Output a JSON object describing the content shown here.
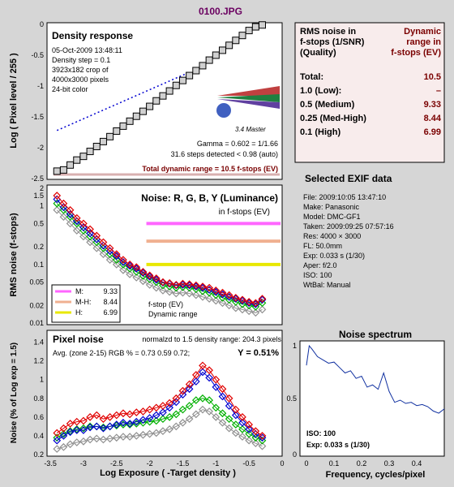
{
  "file_title": "0100.JPG",
  "colors": {
    "red": "#e00000",
    "green": "#00b000",
    "blue": "#0000d0",
    "gray": "#909090",
    "dark_red": "#800000",
    "title": "#6a0060"
  },
  "density": {
    "title": "Density response",
    "info": [
      "05-Oct-2009 13:48:11",
      "Density step = 0.1",
      "3923x182 crop of",
      "4000x3000 pixels",
      "24-bit color"
    ],
    "logo": "imatest",
    "logo_sub": "3.4  Master",
    "gamma": "Gamma = 0.602 = 1/1.66",
    "steps": "31.6 steps detected < 0.98 (auto)",
    "total_dr": "Total dynamic range = 10.5 f-stops (EV)",
    "ylabel": "Log ( Pixel level / 255 )",
    "yticks": [
      "0",
      "-0.5",
      "-1",
      "-1.5",
      "-2",
      "-2.5"
    ]
  },
  "noise_panel": {
    "title": "Noise: R, G, B, Y (Luminance)",
    "subtitle": "in f-stops (EV)",
    "ylabel": "RMS noise (f-stops)",
    "yticks": [
      "2",
      "1.5",
      "1",
      "0.5",
      "0.2",
      "0.1",
      "0.05",
      "0.02",
      "0.01"
    ],
    "legend": [
      {
        "k": "M:",
        "v": "9.33",
        "color": "#ff66ff"
      },
      {
        "k": "M-H:",
        "v": "8.44",
        "color": "#f0b090"
      },
      {
        "k": "H:",
        "v": "6.99",
        "color": "#e8e800"
      }
    ],
    "legend_note1": "f-stop (EV)",
    "legend_note2": "Dynamic range"
  },
  "pixel_panel": {
    "title": "Pixel noise",
    "norm": "normalzd to 1.5 density range: 204.3 pixels",
    "avg": "Avg. (zone 2-15) RGB % = 0.73  0.59  0.72;",
    "y_pct": "Y = 0.51%",
    "ylabel": "Noise (% of Log exp = 1.5)",
    "yticks": [
      "1.4",
      "1.2",
      "1",
      "0.8",
      "0.6",
      "0.4",
      "0.2"
    ],
    "xticks": [
      "-3.5",
      "-3",
      "-2.5",
      "-2",
      "-1.5",
      "-1",
      "-0.5",
      "0"
    ],
    "xlabel": "Log Exposure ( -Target density )"
  },
  "rms_table": {
    "h1": "RMS noise in",
    "h2": "f-stops (1/SNR)",
    "h3": "(Quality)",
    "d1": "Dynamic",
    "d2": "range in",
    "d3": "f-stops (EV)",
    "rows": [
      {
        "label": "Total:",
        "value": "10.5"
      },
      {
        "label": "1.0   (Low):",
        "value": "–"
      },
      {
        "label": "0.5   (Medium)",
        "value": "9.33"
      },
      {
        "label": "0.25 (Med-High)",
        "value": "8.44"
      },
      {
        "label": "0.1   (High)",
        "value": "6.99"
      }
    ]
  },
  "exif": {
    "title": "Selected EXIF data",
    "lines": [
      "File:  2009:10:05 13:47:10",
      "Make:  Panasonic",
      "Model: DMC-GF1",
      "Taken:  2009:09:25 07:57:16",
      "Res:   4000 × 3000",
      "FL:   50.0mm",
      "Exp:  0.033 s  (1/30)",
      "Aper:  f/2.0",
      "ISO:   100",
      "WtBal:  Manual"
    ]
  },
  "spectrum": {
    "title": "Noise spectrum",
    "xlabel": "Frequency, cycles/pixel",
    "yticks": [
      "1",
      "0.5",
      "0"
    ],
    "xticks": [
      "0",
      "0.1",
      "0.2",
      "0.3",
      "0.4"
    ],
    "iso": "ISO:    100",
    "exp": "Exp:  0.033 s    (1/30)"
  },
  "chart_data": [
    {
      "type": "line",
      "title": "Density response",
      "ylabel": "Log ( Pixel level / 255 )",
      "ylim": [
        -2.5,
        0
      ],
      "x": [
        -3.4,
        -3.3,
        -3.2,
        -3.1,
        -3.0,
        -2.9,
        -2.8,
        -2.7,
        -2.6,
        -2.5,
        -2.4,
        -2.3,
        -2.2,
        -2.1,
        -2.0,
        -1.9,
        -1.8,
        -1.7,
        -1.6,
        -1.5,
        -1.4,
        -1.3,
        -1.2,
        -1.1,
        -1.0,
        -0.9,
        -0.8,
        -0.7,
        -0.6,
        -0.5,
        -0.4,
        -0.3
      ],
      "series": [
        {
          "values": [
            -2.38,
            -2.36,
            -2.28,
            -2.2,
            -2.14,
            -2.06,
            -1.98,
            -1.9,
            -1.82,
            -1.73,
            -1.65,
            -1.57,
            -1.49,
            -1.41,
            -1.33,
            -1.24,
            -1.16,
            -1.08,
            -0.99,
            -0.91,
            -0.83,
            -0.75,
            -0.67,
            -0.58,
            -0.5,
            -0.42,
            -0.34,
            -0.26,
            -0.18,
            -0.1,
            -0.04,
            -0.01
          ]
        }
      ],
      "fit_line": {
        "x": [
          -3.4,
          -1.45
        ],
        "y": [
          -1.72,
          -0.8
        ]
      }
    },
    {
      "type": "line",
      "title": "Noise: R, G, B, Y (Luminance)",
      "ylabel": "RMS noise (f-stops)",
      "log_y": true,
      "ylim": [
        0.01,
        2
      ],
      "x": [
        -3.4,
        -3.3,
        -3.2,
        -3.1,
        -3.0,
        -2.9,
        -2.8,
        -2.7,
        -2.6,
        -2.5,
        -2.4,
        -2.3,
        -2.2,
        -2.1,
        -2.0,
        -1.9,
        -1.8,
        -1.7,
        -1.6,
        -1.5,
        -1.4,
        -1.3,
        -1.2,
        -1.1,
        -1.0,
        -0.9,
        -0.8,
        -0.7,
        -0.6,
        -0.5,
        -0.4,
        -0.3
      ],
      "series": [
        {
          "color": "red",
          "values": [
            1.5,
            1.1,
            0.85,
            0.62,
            0.5,
            0.4,
            0.31,
            0.24,
            0.19,
            0.15,
            0.12,
            0.1,
            0.09,
            0.075,
            0.065,
            0.058,
            0.05,
            0.048,
            0.045,
            0.047,
            0.046,
            0.044,
            0.042,
            0.04,
            0.036,
            0.033,
            0.03,
            0.027,
            0.025,
            0.023,
            0.022,
            0.026
          ]
        },
        {
          "color": "blue",
          "values": [
            1.3,
            0.95,
            0.72,
            0.55,
            0.43,
            0.34,
            0.27,
            0.21,
            0.17,
            0.14,
            0.11,
            0.095,
            0.085,
            0.072,
            0.062,
            0.055,
            0.049,
            0.047,
            0.044,
            0.045,
            0.044,
            0.042,
            0.04,
            0.037,
            0.034,
            0.031,
            0.028,
            0.026,
            0.024,
            0.022,
            0.021,
            0.025
          ]
        },
        {
          "color": "green",
          "values": [
            1.1,
            0.85,
            0.65,
            0.5,
            0.38,
            0.3,
            0.24,
            0.19,
            0.15,
            0.12,
            0.1,
            0.085,
            0.075,
            0.064,
            0.056,
            0.05,
            0.044,
            0.042,
            0.04,
            0.041,
            0.04,
            0.038,
            0.035,
            0.033,
            0.03,
            0.027,
            0.025,
            0.023,
            0.021,
            0.02,
            0.019,
            0.022
          ]
        },
        {
          "color": "gray",
          "values": [
            0.85,
            0.65,
            0.5,
            0.38,
            0.3,
            0.24,
            0.19,
            0.15,
            0.12,
            0.1,
            0.08,
            0.068,
            0.06,
            0.052,
            0.045,
            0.04,
            0.036,
            0.034,
            0.032,
            0.033,
            0.032,
            0.03,
            0.028,
            0.026,
            0.024,
            0.022,
            0.02,
            0.018,
            0.017,
            0.016,
            0.015,
            0.017
          ]
        }
      ],
      "thresholds": [
        {
          "y": 0.5,
          "color": "#ff66ff"
        },
        {
          "y": 0.25,
          "color": "#f0b090"
        },
        {
          "y": 0.1,
          "color": "#e8e800"
        }
      ]
    },
    {
      "type": "line",
      "title": "Pixel noise",
      "xlabel": "Log Exposure ( -Target density )",
      "ylabel": "Noise (% of Log exp = 1.5)",
      "xlim": [
        -3.5,
        0
      ],
      "ylim": [
        0.2,
        1.5
      ],
      "x": [
        -3.4,
        -3.3,
        -3.2,
        -3.1,
        -3.0,
        -2.9,
        -2.8,
        -2.7,
        -2.6,
        -2.5,
        -2.4,
        -2.3,
        -2.2,
        -2.1,
        -2.0,
        -1.9,
        -1.8,
        -1.7,
        -1.6,
        -1.5,
        -1.4,
        -1.3,
        -1.2,
        -1.1,
        -1.0,
        -0.9,
        -0.8,
        -0.7,
        -0.6,
        -0.5,
        -0.4,
        -0.3
      ],
      "series": [
        {
          "color": "red",
          "values": [
            0.43,
            0.48,
            0.53,
            0.55,
            0.56,
            0.6,
            0.62,
            0.58,
            0.6,
            0.62,
            0.64,
            0.63,
            0.65,
            0.66,
            0.68,
            0.7,
            0.72,
            0.75,
            0.8,
            0.88,
            0.95,
            1.05,
            1.15,
            1.1,
            1.0,
            0.9,
            0.8,
            0.68,
            0.6,
            0.52,
            0.45,
            0.4
          ]
        },
        {
          "color": "blue",
          "values": [
            0.35,
            0.4,
            0.44,
            0.46,
            0.46,
            0.49,
            0.5,
            0.48,
            0.5,
            0.52,
            0.54,
            0.53,
            0.55,
            0.57,
            0.59,
            0.62,
            0.65,
            0.7,
            0.76,
            0.84,
            0.9,
            0.98,
            1.08,
            1.02,
            0.92,
            0.82,
            0.72,
            0.62,
            0.54,
            0.47,
            0.42,
            0.38
          ]
        },
        {
          "color": "green",
          "values": [
            0.38,
            0.42,
            0.45,
            0.47,
            0.48,
            0.5,
            0.5,
            0.49,
            0.5,
            0.51,
            0.52,
            0.52,
            0.53,
            0.54,
            0.55,
            0.56,
            0.58,
            0.6,
            0.63,
            0.68,
            0.72,
            0.78,
            0.8,
            0.78,
            0.7,
            0.64,
            0.58,
            0.52,
            0.47,
            0.42,
            0.38,
            0.35
          ]
        },
        {
          "color": "gray",
          "values": [
            0.26,
            0.28,
            0.31,
            0.33,
            0.34,
            0.36,
            0.37,
            0.36,
            0.37,
            0.38,
            0.39,
            0.39,
            0.4,
            0.41,
            0.42,
            0.43,
            0.45,
            0.47,
            0.5,
            0.54,
            0.58,
            0.63,
            0.68,
            0.66,
            0.6,
            0.54,
            0.48,
            0.43,
            0.39,
            0.35,
            0.32,
            0.29
          ]
        }
      ]
    },
    {
      "type": "line",
      "title": "Noise spectrum",
      "xlabel": "Frequency, cycles/pixel",
      "xlim": [
        0,
        0.5
      ],
      "ylim": [
        0,
        1
      ],
      "x": [
        0,
        0.01,
        0.02,
        0.04,
        0.06,
        0.08,
        0.1,
        0.12,
        0.14,
        0.16,
        0.18,
        0.2,
        0.22,
        0.24,
        0.26,
        0.28,
        0.3,
        0.32,
        0.34,
        0.36,
        0.38,
        0.4,
        0.42,
        0.44,
        0.46,
        0.48,
        0.5
      ],
      "series": [
        {
          "color": "blue",
          "values": [
            0.82,
            1.0,
            0.97,
            0.9,
            0.87,
            0.84,
            0.85,
            0.8,
            0.75,
            0.77,
            0.7,
            0.72,
            0.62,
            0.64,
            0.6,
            0.75,
            0.58,
            0.48,
            0.5,
            0.47,
            0.48,
            0.45,
            0.46,
            0.44,
            0.4,
            0.38,
            0.42
          ]
        }
      ]
    }
  ]
}
